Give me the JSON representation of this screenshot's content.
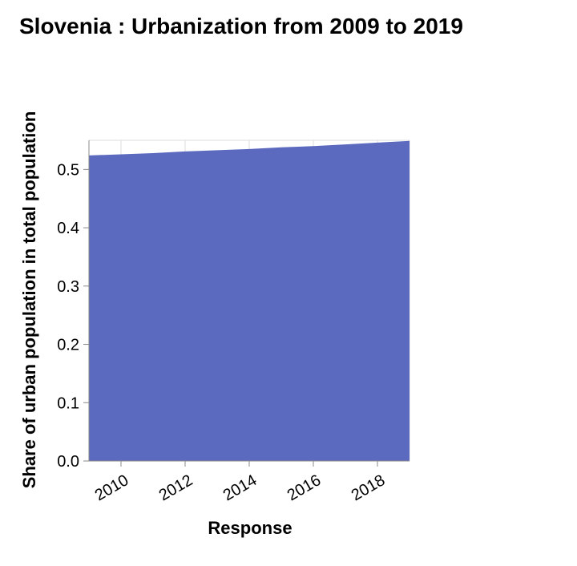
{
  "chart_data": {
    "type": "area",
    "title": "Slovenia : Urbanization from 2009 to 2019",
    "xlabel": "Response",
    "ylabel": "Share of urban population in total population",
    "x": [
      2009,
      2010,
      2011,
      2012,
      2013,
      2014,
      2015,
      2016,
      2017,
      2018,
      2019
    ],
    "series": [
      {
        "values": [
          0.524,
          0.526,
          0.528,
          0.531,
          0.533,
          0.535,
          0.538,
          0.54,
          0.543,
          0.546,
          0.549
        ]
      }
    ],
    "xlim": [
      2009,
      2019
    ],
    "ylim": [
      0,
      0.55
    ],
    "x_ticks": [
      "2010",
      "2012",
      "2014",
      "2016",
      "2018"
    ],
    "y_ticks": [
      "0.0",
      "0.1",
      "0.2",
      "0.3",
      "0.4",
      "0.5"
    ],
    "grid": true,
    "fill_color": "#5b6abf"
  }
}
